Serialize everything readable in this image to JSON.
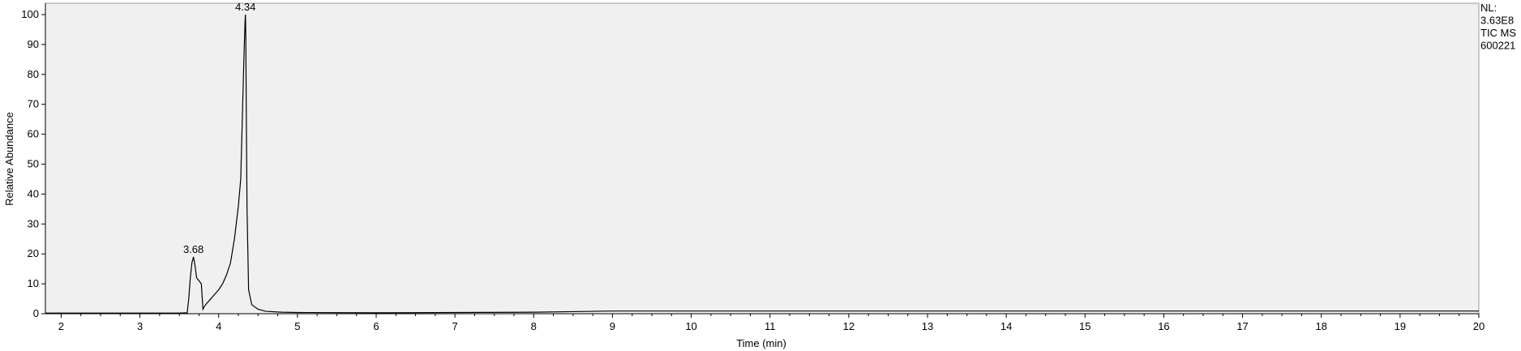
{
  "chart_data": {
    "type": "line",
    "title": "",
    "xlabel": "Time (min)",
    "ylabel": "Relative Abundance",
    "xlim": [
      1.8,
      20
    ],
    "ylim": [
      0,
      100
    ],
    "x_ticks": [
      "2",
      "3",
      "4",
      "5",
      "6",
      "7",
      "8",
      "9",
      "10",
      "11",
      "12",
      "13",
      "14",
      "15",
      "16",
      "17",
      "18",
      "19",
      "20"
    ],
    "y_ticks": [
      "0",
      "10",
      "20",
      "30",
      "40",
      "50",
      "60",
      "70",
      "80",
      "90",
      "100"
    ],
    "grid": false,
    "plot_background": "#f0f0f0",
    "line_color": "#000000",
    "info_lines": [
      "NL:",
      "3.63E8",
      "TIC  MS",
      "600221"
    ],
    "peaks": [
      {
        "label": "3.68",
        "x": 3.68,
        "y": 19
      },
      {
        "label": "4.34",
        "x": 4.34,
        "y": 100
      }
    ],
    "series": [
      {
        "x": [
          1.8,
          3.5,
          3.6,
          3.62,
          3.64,
          3.66,
          3.68,
          3.7,
          3.72,
          3.75,
          3.78,
          3.8,
          3.82,
          3.85,
          3.9,
          3.95,
          4.0,
          4.05,
          4.1,
          4.15,
          4.2,
          4.25,
          4.28,
          4.3,
          4.32,
          4.335,
          4.34,
          4.345,
          4.35,
          4.36,
          4.38,
          4.42,
          4.5,
          4.6,
          4.8,
          5.0,
          6.0,
          7.0,
          8.0,
          8.5,
          9.0,
          10.0,
          12.0,
          14.0,
          16.0,
          18.0,
          20.0
        ],
        "y": [
          0.2,
          0.2,
          0.3,
          5,
          12,
          17,
          19,
          16,
          12,
          11,
          10,
          1.5,
          2.5,
          3.5,
          5,
          6.5,
          8,
          10,
          13,
          17,
          25,
          36,
          45,
          65,
          85,
          98,
          100,
          92,
          70,
          35,
          8,
          3,
          1.5,
          0.8,
          0.5,
          0.4,
          0.3,
          0.4,
          0.5,
          0.7,
          0.9,
          0.9,
          0.9,
          0.9,
          0.9,
          0.9,
          0.9
        ]
      }
    ]
  }
}
